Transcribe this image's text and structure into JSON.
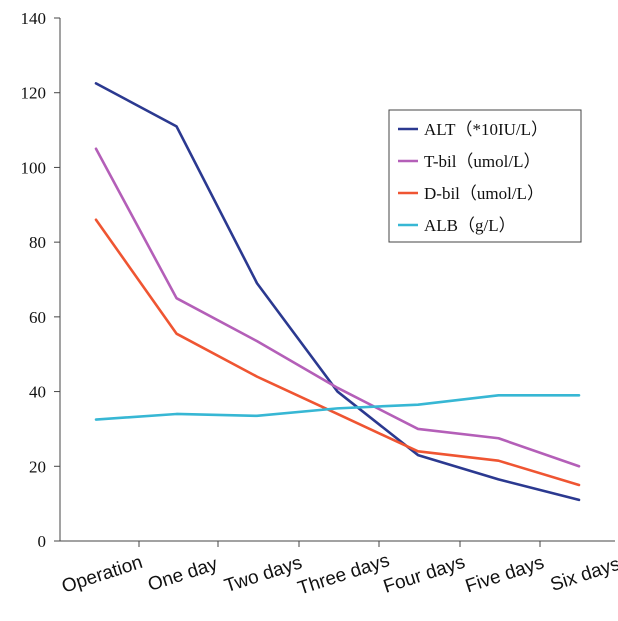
{
  "chart_data": {
    "type": "line",
    "title": "",
    "xlabel": "",
    "ylabel": "",
    "categories": [
      "Operation",
      "One day",
      "Two days",
      "Three days",
      "Four days",
      "Five days",
      "Six days"
    ],
    "ylim": [
      0,
      140
    ],
    "yticks": [
      0,
      20,
      40,
      60,
      80,
      100,
      120,
      140
    ],
    "grid": false,
    "legend_position": "top-right",
    "series": [
      {
        "name": "ALT（*10IU/L）",
        "color": "#2b3990",
        "values": [
          122.5,
          111,
          69,
          40,
          23,
          16.5,
          11
        ]
      },
      {
        "name": "T-bil（umol/L）",
        "color": "#b45fb8",
        "values": [
          105,
          65,
          53.5,
          41,
          30,
          27.5,
          20
        ]
      },
      {
        "name": "D-bil（umol/L）",
        "color": "#ef5532",
        "values": [
          86,
          55.5,
          44,
          34,
          24,
          21.5,
          15
        ]
      },
      {
        "name": "ALB（g/L）",
        "color": "#37b7d4",
        "values": [
          32.5,
          34,
          33.5,
          35.5,
          36.5,
          39,
          39
        ]
      }
    ]
  }
}
